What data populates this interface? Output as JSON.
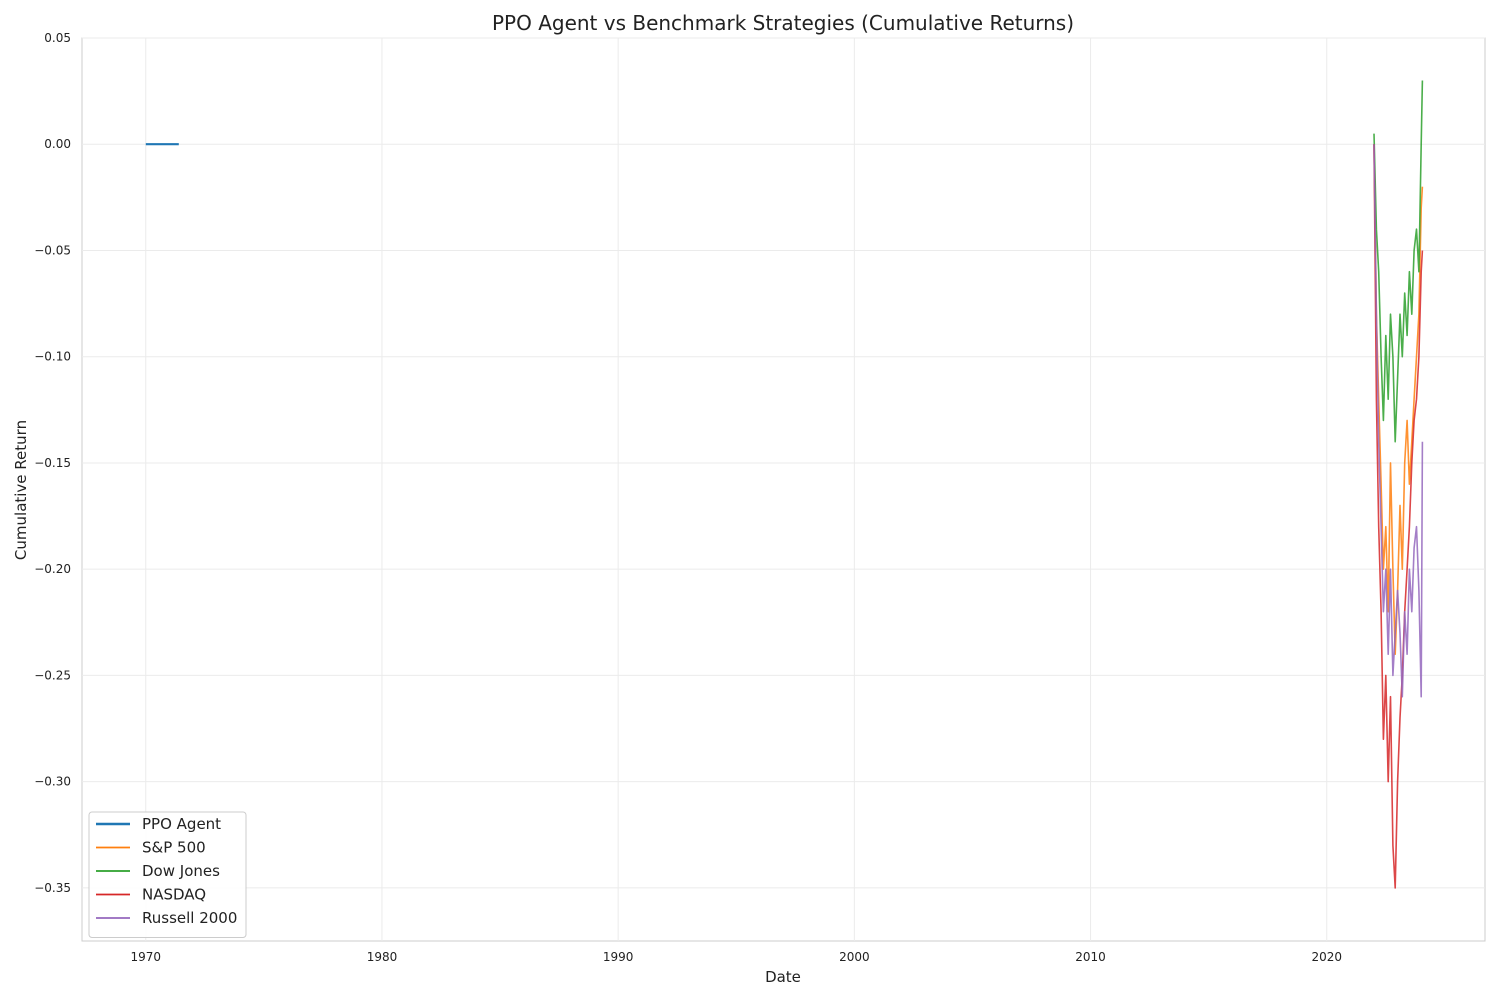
{
  "chart_data": {
    "type": "line",
    "title": "PPO Agent vs Benchmark Strategies (Cumulative Returns)",
    "xlabel": "Date",
    "ylabel": "Cumulative Return",
    "xlim": [
      1967.3,
      2026.7
    ],
    "ylim": [
      -0.375,
      0.05
    ],
    "x_ticks": [
      1970,
      1980,
      1990,
      2000,
      2010,
      2020
    ],
    "x_tick_labels": [
      "1970",
      "1980",
      "1990",
      "2000",
      "2010",
      "2020"
    ],
    "y_ticks": [
      0.05,
      0.0,
      -0.05,
      -0.1,
      -0.15,
      -0.2,
      -0.25,
      -0.3,
      -0.35
    ],
    "y_tick_labels": [
      "0.05",
      "0.00",
      "−0.05",
      "−0.10",
      "−0.15",
      "−0.20",
      "−0.25",
      "−0.30",
      "−0.35"
    ],
    "grid": true,
    "legend_position": "lower-left",
    "series": [
      {
        "name": "PPO Agent",
        "color": "#1f77b4",
        "x": [
          1970.0,
          1970.5,
          1971.0,
          1971.4
        ],
        "y": [
          0.0,
          0.0,
          0.0,
          0.0
        ]
      },
      {
        "name": "S&P 500",
        "color": "#ff7f0e",
        "x": [
          2022.0,
          2022.1,
          2022.2,
          2022.3,
          2022.4,
          2022.5,
          2022.6,
          2022.7,
          2022.8,
          2022.9,
          2023.0,
          2023.1,
          2023.2,
          2023.3,
          2023.4,
          2023.5,
          2023.6,
          2023.7,
          2023.8,
          2023.9,
          2024.0,
          2024.05
        ],
        "y": [
          0.0,
          -0.08,
          -0.12,
          -0.16,
          -0.2,
          -0.18,
          -0.22,
          -0.15,
          -0.2,
          -0.24,
          -0.21,
          -0.17,
          -0.2,
          -0.15,
          -0.13,
          -0.16,
          -0.14,
          -0.12,
          -0.1,
          -0.08,
          -0.03,
          -0.02
        ]
      },
      {
        "name": "Dow Jones",
        "color": "#2ca02c",
        "x": [
          2022.0,
          2022.1,
          2022.2,
          2022.3,
          2022.4,
          2022.5,
          2022.6,
          2022.7,
          2022.8,
          2022.9,
          2023.0,
          2023.1,
          2023.2,
          2023.3,
          2023.4,
          2023.5,
          2023.6,
          2023.7,
          2023.8,
          2023.9,
          2024.0,
          2024.05
        ],
        "y": [
          0.005,
          -0.04,
          -0.06,
          -0.1,
          -0.13,
          -0.09,
          -0.12,
          -0.08,
          -0.1,
          -0.14,
          -0.11,
          -0.08,
          -0.1,
          -0.07,
          -0.09,
          -0.06,
          -0.08,
          -0.05,
          -0.04,
          -0.06,
          0.0,
          0.03
        ]
      },
      {
        "name": "NASDAQ",
        "color": "#d62728",
        "x": [
          2022.0,
          2022.1,
          2022.2,
          2022.3,
          2022.4,
          2022.5,
          2022.6,
          2022.7,
          2022.8,
          2022.9,
          2023.0,
          2023.1,
          2023.2,
          2023.3,
          2023.4,
          2023.5,
          2023.6,
          2023.7,
          2023.8,
          2023.9,
          2024.0,
          2024.05
        ],
        "y": [
          0.0,
          -0.12,
          -0.18,
          -0.22,
          -0.28,
          -0.25,
          -0.3,
          -0.26,
          -0.33,
          -0.35,
          -0.3,
          -0.27,
          -0.25,
          -0.22,
          -0.2,
          -0.18,
          -0.15,
          -0.13,
          -0.12,
          -0.1,
          -0.06,
          -0.05
        ]
      },
      {
        "name": "Russell 2000",
        "color": "#9467bd",
        "x": [
          2022.0,
          2022.1,
          2022.2,
          2022.3,
          2022.4,
          2022.5,
          2022.6,
          2022.7,
          2022.8,
          2022.9,
          2023.0,
          2023.1,
          2023.2,
          2023.3,
          2023.4,
          2023.5,
          2023.6,
          2023.7,
          2023.8,
          2023.9,
          2024.0,
          2024.05
        ],
        "y": [
          0.0,
          -0.08,
          -0.14,
          -0.18,
          -0.22,
          -0.2,
          -0.24,
          -0.2,
          -0.25,
          -0.23,
          -0.21,
          -0.23,
          -0.26,
          -0.22,
          -0.24,
          -0.2,
          -0.22,
          -0.19,
          -0.18,
          -0.21,
          -0.26,
          -0.14
        ]
      }
    ]
  }
}
